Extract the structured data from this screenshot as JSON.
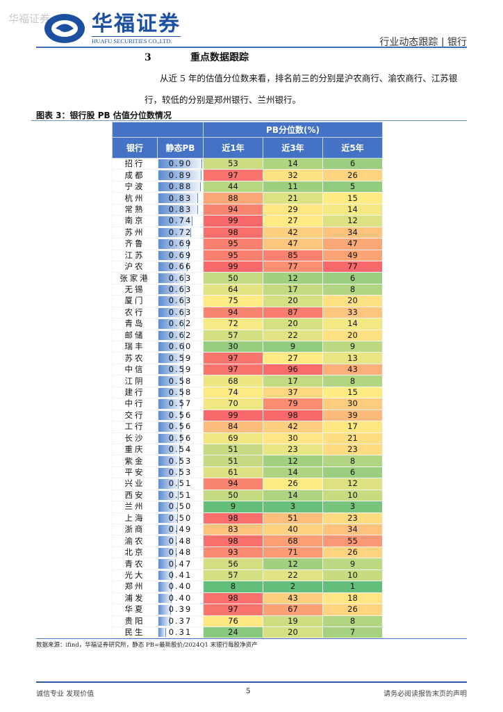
{
  "header": {
    "watermark": "华福证券",
    "logo_cn": "华福证券",
    "logo_en": "HUAFU SECURITIES CO.,LTD.",
    "report_type": "行业动态跟踪 | 银行"
  },
  "section": {
    "number": "3",
    "title": "重点数据跟踪"
  },
  "paragraph": "从近 5 年的估值分位数来看，排名前三的分别是沪农商行、渝农商行、江苏银行，较低的分别是郑州银行、兰州银行。",
  "figure": {
    "caption": "图表 3：银行股 PB 估值分位数情况",
    "group_header": "PB分位数(%)",
    "columns": [
      "银行",
      "静态PB",
      "近1年",
      "近3年",
      "近5年"
    ],
    "rows": [
      [
        "招行",
        "0.90",
        53,
        14,
        6
      ],
      [
        "成都",
        "0.89",
        97,
        32,
        26
      ],
      [
        "宁波",
        "0.88",
        44,
        11,
        5
      ],
      [
        "杭州",
        "0.83",
        88,
        21,
        15
      ],
      [
        "常熟",
        "0.83",
        94,
        29,
        14
      ],
      [
        "南京",
        "0.74",
        99,
        27,
        12
      ],
      [
        "苏州",
        "0.72",
        98,
        42,
        34
      ],
      [
        "齐鲁",
        "0.69",
        95,
        47,
        47
      ],
      [
        "江苏",
        "0.69",
        95,
        85,
        49
      ],
      [
        "沪农",
        "0.66",
        99,
        77,
        77
      ],
      [
        "张家港",
        "0.63",
        50,
        12,
        6
      ],
      [
        "无锡",
        "0.63",
        64,
        17,
        8
      ],
      [
        "厦门",
        "0.63",
        75,
        20,
        20
      ],
      [
        "农行",
        "0.63",
        94,
        87,
        33
      ],
      [
        "青岛",
        "0.62",
        72,
        20,
        14
      ],
      [
        "邮储",
        "0.62",
        57,
        22,
        20
      ],
      [
        "瑞丰",
        "0.60",
        30,
        9,
        9
      ],
      [
        "苏农",
        "0.59",
        97,
        27,
        13
      ],
      [
        "中信",
        "0.59",
        97,
        96,
        43
      ],
      [
        "江阴",
        "0.58",
        68,
        17,
        8
      ],
      [
        "建行",
        "0.58",
        74,
        37,
        15
      ],
      [
        "中行",
        "0.57",
        70,
        79,
        30
      ],
      [
        "交行",
        "0.56",
        99,
        98,
        39
      ],
      [
        "工行",
        "0.56",
        84,
        42,
        17
      ],
      [
        "长沙",
        "0.56",
        69,
        30,
        21
      ],
      [
        "重庆",
        "0.54",
        51,
        23,
        23
      ],
      [
        "紫金",
        "0.53",
        51,
        12,
        8
      ],
      [
        "平安",
        "0.53",
        61,
        14,
        6
      ],
      [
        "兴业",
        "0.51",
        94,
        26,
        12
      ],
      [
        "西安",
        "0.51",
        50,
        14,
        10
      ],
      [
        "兰州",
        "0.50",
        9,
        3,
        3
      ],
      [
        "上海",
        "0.50",
        98,
        51,
        23
      ],
      [
        "浙商",
        "0.49",
        83,
        40,
        34
      ],
      [
        "渝农",
        "0.48",
        98,
        68,
        55
      ],
      [
        "北京",
        "0.48",
        93,
        71,
        26
      ],
      [
        "青农",
        "0.47",
        56,
        12,
        9
      ],
      [
        "光大",
        "0.41",
        57,
        22,
        10
      ],
      [
        "郑州",
        "0.40",
        8,
        2,
        1
      ],
      [
        "浦发",
        "0.40",
        98,
        43,
        18
      ],
      [
        "华夏",
        "0.39",
        97,
        67,
        26
      ],
      [
        "贵阳",
        "0.37",
        76,
        19,
        8
      ],
      [
        "民生",
        "0.31",
        24,
        20,
        7
      ]
    ],
    "source": "数据来源：ifind，华福证券研究所，静态 PB=最新股价/2024Q1 末银行每股净资产"
  },
  "colors": {
    "low": "#63BE7B",
    "mid": "#FFEB84",
    "high": "#F8696B",
    "header": "#4472C4"
  },
  "footer": {
    "left": "诚信专业  发现价值",
    "page": "5",
    "right": "请务必阅读报告末页的声明"
  }
}
